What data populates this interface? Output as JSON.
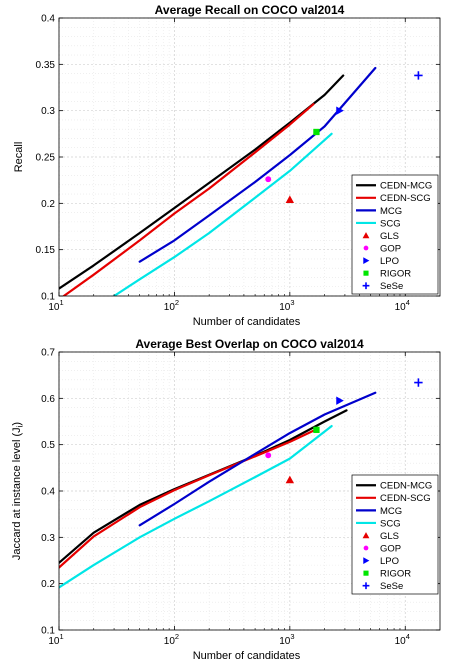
{
  "chart_data": [
    {
      "type": "line",
      "title": "Average Recall on COCO val2014",
      "xlabel": "Number of candidates",
      "ylabel": "Recall",
      "xscale": "log",
      "xlim": [
        10,
        20000
      ],
      "ylim": [
        0.1,
        0.4
      ],
      "xticks": [
        {
          "value": 10,
          "base": "10",
          "exp": "1"
        },
        {
          "value": 100,
          "base": "10",
          "exp": "2"
        },
        {
          "value": 1000,
          "base": "10",
          "exp": "3"
        },
        {
          "value": 10000,
          "base": "10",
          "exp": "4"
        }
      ],
      "yticks": [
        {
          "value": 0.1,
          "label": "0.1"
        },
        {
          "value": 0.15,
          "label": "0.15"
        },
        {
          "value": 0.2,
          "label": "0.2"
        },
        {
          "value": 0.25,
          "label": "0.25"
        },
        {
          "value": 0.3,
          "label": "0.3"
        },
        {
          "value": 0.35,
          "label": "0.35"
        },
        {
          "value": 0.4,
          "label": "0.4"
        }
      ],
      "grid": true,
      "legend_position": "lower-right",
      "series": [
        {
          "name": "CEDN-MCG",
          "kind": "line",
          "color": "#000000",
          "x": [
            10,
            20,
            50,
            100,
            200,
            500,
            1000,
            2000,
            2900
          ],
          "y": [
            0.108,
            0.133,
            0.168,
            0.195,
            0.222,
            0.258,
            0.287,
            0.317,
            0.338
          ]
        },
        {
          "name": "CEDN-SCG",
          "kind": "line",
          "color": "#e60000",
          "x": [
            11,
            20,
            50,
            100,
            200,
            500,
            1000,
            1600
          ],
          "y": [
            0.1,
            0.123,
            0.16,
            0.189,
            0.216,
            0.255,
            0.285,
            0.307
          ]
        },
        {
          "name": "MCG",
          "kind": "line",
          "color": "#0000cc",
          "x": [
            50,
            100,
            200,
            500,
            1000,
            2000,
            5500
          ],
          "y": [
            0.137,
            0.16,
            0.187,
            0.223,
            0.252,
            0.283,
            0.346
          ]
        },
        {
          "name": "SCG",
          "kind": "line",
          "color": "#00e6e6",
          "x": [
            30,
            50,
            100,
            200,
            500,
            1000,
            2300
          ],
          "y": [
            0.1,
            0.118,
            0.142,
            0.168,
            0.206,
            0.235,
            0.275
          ]
        },
        {
          "name": "GLS",
          "kind": "point",
          "marker": "triangle-up",
          "color": "#e60000",
          "x": [
            1000
          ],
          "y": [
            0.204
          ]
        },
        {
          "name": "GOP",
          "kind": "point",
          "marker": "circle",
          "color": "#ff00ff",
          "x": [
            650
          ],
          "y": [
            0.226
          ]
        },
        {
          "name": "LPO",
          "kind": "point",
          "marker": "triangle-right",
          "color": "#0000ff",
          "x": [
            2700
          ],
          "y": [
            0.3
          ]
        },
        {
          "name": "RIGOR",
          "kind": "point",
          "marker": "square",
          "color": "#00e600",
          "x": [
            1700
          ],
          "y": [
            0.277
          ]
        },
        {
          "name": "SeSe",
          "kind": "point",
          "marker": "plus",
          "color": "#0000ff",
          "x": [
            13000
          ],
          "y": [
            0.338
          ]
        }
      ]
    },
    {
      "type": "line",
      "title": "Average Best Overlap on COCO val2014",
      "xlabel": "Number of candidates",
      "ylabel": "Jaccard at instance level (J",
      "ylabel_subscript": "i",
      "ylabel_suffix": ")",
      "xscale": "log",
      "xlim": [
        10,
        20000
      ],
      "ylim": [
        0.1,
        0.7
      ],
      "xticks": [
        {
          "value": 10,
          "base": "10",
          "exp": "1"
        },
        {
          "value": 100,
          "base": "10",
          "exp": "2"
        },
        {
          "value": 1000,
          "base": "10",
          "exp": "3"
        },
        {
          "value": 10000,
          "base": "10",
          "exp": "4"
        }
      ],
      "yticks": [
        {
          "value": 0.1,
          "label": "0.1"
        },
        {
          "value": 0.2,
          "label": "0.2"
        },
        {
          "value": 0.3,
          "label": "0.3"
        },
        {
          "value": 0.4,
          "label": "0.4"
        },
        {
          "value": 0.5,
          "label": "0.5"
        },
        {
          "value": 0.6,
          "label": "0.6"
        },
        {
          "value": 0.7,
          "label": "0.7"
        }
      ],
      "grid": true,
      "legend_position": "lower-right",
      "series": [
        {
          "name": "CEDN-MCG",
          "kind": "line",
          "color": "#000000",
          "x": [
            10,
            20,
            50,
            100,
            200,
            500,
            1000,
            2000,
            3100
          ],
          "y": [
            0.245,
            0.31,
            0.37,
            0.404,
            0.435,
            0.476,
            0.51,
            0.55,
            0.574
          ]
        },
        {
          "name": "CEDN-SCG",
          "kind": "line",
          "color": "#e60000",
          "x": [
            10,
            20,
            50,
            100,
            200,
            500,
            1000,
            1600
          ],
          "y": [
            0.235,
            0.302,
            0.365,
            0.402,
            0.434,
            0.475,
            0.506,
            0.53
          ]
        },
        {
          "name": "MCG",
          "kind": "line",
          "color": "#0000cc",
          "x": [
            50,
            100,
            200,
            500,
            1000,
            2000,
            5500
          ],
          "y": [
            0.326,
            0.372,
            0.42,
            0.48,
            0.525,
            0.565,
            0.612
          ]
        },
        {
          "name": "SCG",
          "kind": "line",
          "color": "#00e6e6",
          "x": [
            10,
            20,
            50,
            100,
            200,
            500,
            1000,
            2300
          ],
          "y": [
            0.192,
            0.24,
            0.3,
            0.34,
            0.378,
            0.43,
            0.47,
            0.54
          ]
        },
        {
          "name": "GLS",
          "kind": "point",
          "marker": "triangle-up",
          "color": "#e60000",
          "x": [
            1000
          ],
          "y": [
            0.424
          ]
        },
        {
          "name": "GOP",
          "kind": "point",
          "marker": "circle",
          "color": "#ff00ff",
          "x": [
            650
          ],
          "y": [
            0.477
          ]
        },
        {
          "name": "LPO",
          "kind": "point",
          "marker": "triangle-right",
          "color": "#0000ff",
          "x": [
            2700
          ],
          "y": [
            0.595
          ]
        },
        {
          "name": "RIGOR",
          "kind": "point",
          "marker": "square",
          "color": "#00e600",
          "x": [
            1700
          ],
          "y": [
            0.532
          ]
        },
        {
          "name": "SeSe",
          "kind": "point",
          "marker": "plus",
          "color": "#0000ff",
          "x": [
            13000
          ],
          "y": [
            0.634
          ]
        }
      ]
    }
  ]
}
